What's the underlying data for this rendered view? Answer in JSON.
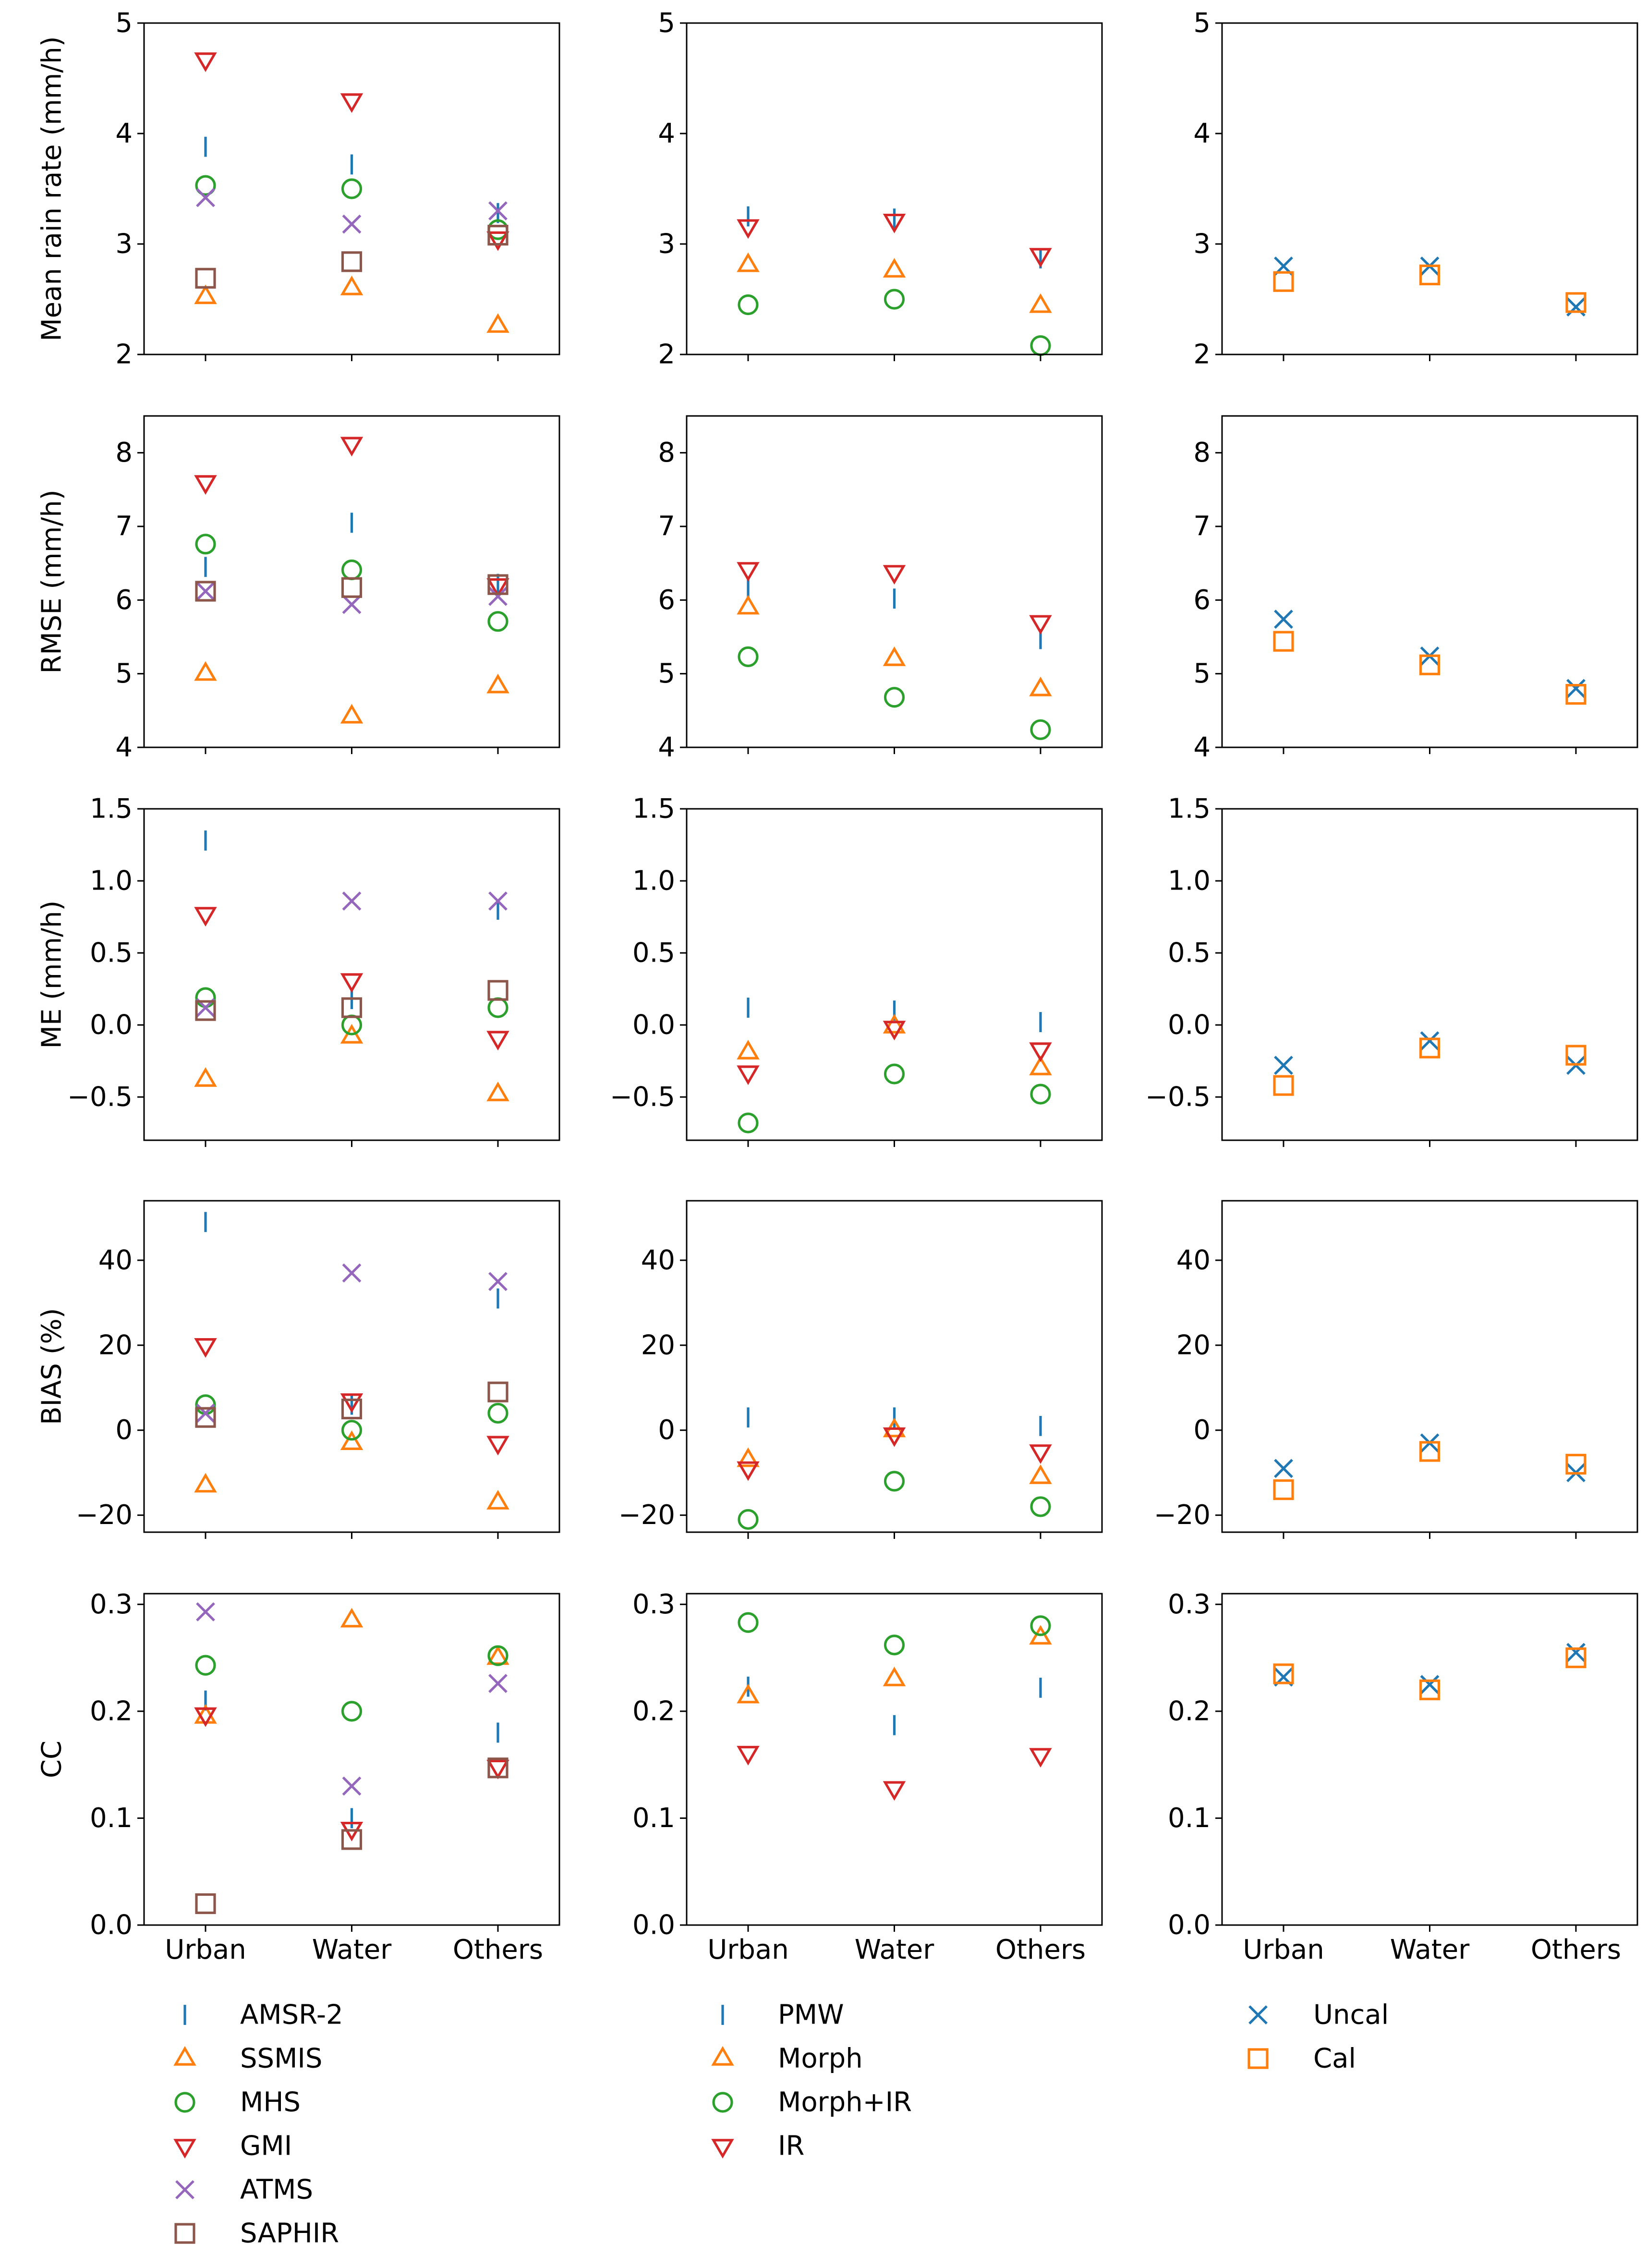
{
  "chart_data": [
    {
      "id": "p00",
      "type": "scatter",
      "ylabel": "Mean rain rate (mm/h)",
      "ylim": [
        2,
        5
      ],
      "yticks": [
        2,
        3,
        4,
        5
      ],
      "ytick_labels": [
        "2",
        "3",
        "4",
        "5"
      ],
      "categories": [
        "Urban",
        "Water",
        "Others"
      ],
      "series": [
        {
          "name": "AMSR-2",
          "values": [
            3.88,
            3.72,
            3.28
          ]
        },
        {
          "name": "SSMIS",
          "values": [
            2.52,
            2.6,
            2.26
          ]
        },
        {
          "name": "MHS",
          "values": [
            3.53,
            3.5,
            3.13
          ]
        },
        {
          "name": "GMI",
          "values": [
            4.67,
            4.3,
            3.05
          ]
        },
        {
          "name": "ATMS",
          "values": [
            3.42,
            3.18,
            3.3
          ]
        },
        {
          "name": "SAPHIR",
          "values": [
            2.69,
            2.84,
            3.08
          ]
        }
      ]
    },
    {
      "id": "p01",
      "type": "scatter",
      "ylabel": "",
      "ylim": [
        2,
        5
      ],
      "yticks": [
        2,
        3,
        4,
        5
      ],
      "ytick_labels": [
        "2",
        "3",
        "4",
        "5"
      ],
      "categories": [
        "Urban",
        "Water",
        "Others"
      ],
      "series": [
        {
          "name": "PMW",
          "values": [
            3.25,
            3.23,
            2.87
          ]
        },
        {
          "name": "Morph",
          "values": [
            2.81,
            2.76,
            2.44
          ]
        },
        {
          "name": "Morph+IR",
          "values": [
            2.45,
            2.5,
            2.08
          ]
        },
        {
          "name": "IR",
          "values": [
            3.16,
            3.21,
            2.9
          ]
        }
      ]
    },
    {
      "id": "p02",
      "type": "scatter",
      "ylabel": "",
      "ylim": [
        2,
        5
      ],
      "yticks": [
        2,
        3,
        4,
        5
      ],
      "ytick_labels": [
        "2",
        "3",
        "4",
        "5"
      ],
      "categories": [
        "Urban",
        "Water",
        "Others"
      ],
      "series": [
        {
          "name": "Uncal",
          "values": [
            2.8,
            2.8,
            2.43
          ]
        },
        {
          "name": "Cal",
          "values": [
            2.66,
            2.72,
            2.47
          ]
        }
      ]
    },
    {
      "id": "p10",
      "type": "scatter",
      "ylabel": "RMSE (mm/h)",
      "ylim": [
        4,
        8.5
      ],
      "yticks": [
        4,
        5,
        6,
        7,
        8
      ],
      "ytick_labels": [
        "4",
        "5",
        "6",
        "7",
        "8"
      ],
      "categories": [
        "Urban",
        "Water",
        "Others"
      ],
      "series": [
        {
          "name": "AMSR-2",
          "values": [
            6.45,
            7.05,
            6.22
          ]
        },
        {
          "name": "SSMIS",
          "values": [
            5.0,
            4.42,
            4.83
          ]
        },
        {
          "name": "MHS",
          "values": [
            6.76,
            6.41,
            5.71
          ]
        },
        {
          "name": "GMI",
          "values": [
            7.6,
            8.12,
            6.2
          ]
        },
        {
          "name": "ATMS",
          "values": [
            6.12,
            5.94,
            6.05
          ]
        },
        {
          "name": "SAPHIR",
          "values": [
            6.12,
            6.17,
            6.21
          ]
        }
      ]
    },
    {
      "id": "p11",
      "type": "scatter",
      "ylabel": "",
      "ylim": [
        4,
        8.5
      ],
      "yticks": [
        4,
        5,
        6,
        7,
        8
      ],
      "ytick_labels": [
        "4",
        "5",
        "6",
        "7",
        "8"
      ],
      "categories": [
        "Urban",
        "Water",
        "Others"
      ],
      "series": [
        {
          "name": "PMW",
          "values": [
            6.15,
            6.02,
            5.47
          ]
        },
        {
          "name": "Morph",
          "values": [
            5.9,
            5.2,
            4.79
          ]
        },
        {
          "name": "Morph+IR",
          "values": [
            5.23,
            4.68,
            4.24
          ]
        },
        {
          "name": "IR",
          "values": [
            6.42,
            6.38,
            5.7
          ]
        }
      ]
    },
    {
      "id": "p12",
      "type": "scatter",
      "ylabel": "",
      "ylim": [
        4,
        8.5
      ],
      "yticks": [
        4,
        5,
        6,
        7,
        8
      ],
      "ytick_labels": [
        "4",
        "5",
        "6",
        "7",
        "8"
      ],
      "categories": [
        "Urban",
        "Water",
        "Others"
      ],
      "series": [
        {
          "name": "Uncal",
          "values": [
            5.74,
            5.24,
            4.8
          ]
        },
        {
          "name": "Cal",
          "values": [
            5.44,
            5.12,
            4.72
          ]
        }
      ]
    },
    {
      "id": "p20",
      "type": "scatter",
      "ylabel": "ME (mm/h)",
      "ylim": [
        -0.8,
        1.5
      ],
      "yticks": [
        -0.5,
        0.0,
        0.5,
        1.0,
        1.5
      ],
      "ytick_labels": [
        "−0.5",
        "0.0",
        "0.5",
        "1.0",
        "1.5"
      ],
      "categories": [
        "Urban",
        "Water",
        "Others"
      ],
      "series": [
        {
          "name": "AMSR-2",
          "values": [
            1.28,
            0.18,
            0.8
          ]
        },
        {
          "name": "SSMIS",
          "values": [
            -0.38,
            -0.08,
            -0.48
          ]
        },
        {
          "name": "MHS",
          "values": [
            0.19,
            0.0,
            0.12
          ]
        },
        {
          "name": "GMI",
          "values": [
            0.77,
            0.31,
            -0.09
          ]
        },
        {
          "name": "ATMS",
          "values": [
            0.12,
            0.86,
            0.86
          ]
        },
        {
          "name": "SAPHIR",
          "values": [
            0.1,
            0.12,
            0.24
          ]
        }
      ]
    },
    {
      "id": "p21",
      "type": "scatter",
      "ylabel": "",
      "ylim": [
        -0.8,
        1.5
      ],
      "yticks": [
        -0.5,
        0.0,
        0.5,
        1.0,
        1.5
      ],
      "ytick_labels": [
        "−0.5",
        "0.0",
        "0.5",
        "1.0",
        "1.5"
      ],
      "categories": [
        "Urban",
        "Water",
        "Others"
      ],
      "series": [
        {
          "name": "PMW",
          "values": [
            0.12,
            0.1,
            0.02
          ]
        },
        {
          "name": "Morph",
          "values": [
            -0.19,
            -0.01,
            -0.3
          ]
        },
        {
          "name": "Morph+IR",
          "values": [
            -0.68,
            -0.34,
            -0.48
          ]
        },
        {
          "name": "IR",
          "values": [
            -0.33,
            -0.02,
            -0.17
          ]
        }
      ]
    },
    {
      "id": "p22",
      "type": "scatter",
      "ylabel": "",
      "ylim": [
        -0.8,
        1.5
      ],
      "yticks": [
        -0.5,
        0.0,
        0.5,
        1.0,
        1.5
      ],
      "ytick_labels": [
        "−0.5",
        "0.0",
        "0.5",
        "1.0",
        "1.5"
      ],
      "categories": [
        "Urban",
        "Water",
        "Others"
      ],
      "series": [
        {
          "name": "Uncal",
          "values": [
            -0.28,
            -0.11,
            -0.28
          ]
        },
        {
          "name": "Cal",
          "values": [
            -0.42,
            -0.16,
            -0.21
          ]
        }
      ]
    },
    {
      "id": "p30",
      "type": "scatter",
      "ylabel": "BIAS (%)",
      "ylim": [
        -24,
        54
      ],
      "yticks": [
        -20,
        0,
        20,
        40
      ],
      "ytick_labels": [
        "−20",
        "0",
        "20",
        "40"
      ],
      "categories": [
        "Urban",
        "Water",
        "Others"
      ],
      "series": [
        {
          "name": "AMSR-2",
          "values": [
            49,
            6,
            31
          ]
        },
        {
          "name": "SSMIS",
          "values": [
            -13,
            -3,
            -17
          ]
        },
        {
          "name": "MHS",
          "values": [
            6,
            0,
            4
          ]
        },
        {
          "name": "GMI",
          "values": [
            20,
            7,
            -3
          ]
        },
        {
          "name": "ATMS",
          "values": [
            4,
            37,
            35
          ]
        },
        {
          "name": "SAPHIR",
          "values": [
            3,
            5,
            9
          ]
        }
      ]
    },
    {
      "id": "p31",
      "type": "scatter",
      "ylabel": "",
      "ylim": [
        -24,
        54
      ],
      "yticks": [
        -20,
        0,
        20,
        40
      ],
      "ytick_labels": [
        "−20",
        "0",
        "20",
        "40"
      ],
      "categories": [
        "Urban",
        "Water",
        "Others"
      ],
      "series": [
        {
          "name": "PMW",
          "values": [
            3,
            3,
            1
          ]
        },
        {
          "name": "Morph",
          "values": [
            -7,
            0,
            -11
          ]
        },
        {
          "name": "Morph+IR",
          "values": [
            -21,
            -12,
            -18
          ]
        },
        {
          "name": "IR",
          "values": [
            -9,
            -1,
            -5
          ]
        }
      ]
    },
    {
      "id": "p32",
      "type": "scatter",
      "ylabel": "",
      "ylim": [
        -24,
        54
      ],
      "yticks": [
        -20,
        0,
        20,
        40
      ],
      "ytick_labels": [
        "−20",
        "0",
        "20",
        "40"
      ],
      "categories": [
        "Urban",
        "Water",
        "Others"
      ],
      "series": [
        {
          "name": "Uncal",
          "values": [
            -9,
            -3,
            -10
          ]
        },
        {
          "name": "Cal",
          "values": [
            -14,
            -5,
            -8
          ]
        }
      ]
    },
    {
      "id": "p40",
      "type": "scatter",
      "ylabel": "CC",
      "ylim": [
        0,
        0.31
      ],
      "yticks": [
        0.0,
        0.1,
        0.2,
        0.3
      ],
      "ytick_labels": [
        "0.0",
        "0.1",
        "0.2",
        "0.3"
      ],
      "categories": [
        "Urban",
        "Water",
        "Others"
      ],
      "series": [
        {
          "name": "AMSR-2",
          "values": [
            0.21,
            0.1,
            0.18
          ]
        },
        {
          "name": "SSMIS",
          "values": [
            0.195,
            0.285,
            0.25
          ]
        },
        {
          "name": "MHS",
          "values": [
            0.243,
            0.2,
            0.252
          ]
        },
        {
          "name": "GMI",
          "values": [
            0.197,
            0.09,
            0.148
          ]
        },
        {
          "name": "ATMS",
          "values": [
            0.293,
            0.13,
            0.226
          ]
        },
        {
          "name": "SAPHIR",
          "values": [
            0.02,
            0.08,
            0.147
          ]
        }
      ]
    },
    {
      "id": "p41",
      "type": "scatter",
      "ylabel": "",
      "ylim": [
        0,
        0.31
      ],
      "yticks": [
        0.0,
        0.1,
        0.2,
        0.3
      ],
      "ytick_labels": [
        "0.0",
        "0.1",
        "0.2",
        "0.3"
      ],
      "categories": [
        "Urban",
        "Water",
        "Others"
      ],
      "series": [
        {
          "name": "PMW",
          "values": [
            0.223,
            0.187,
            0.222
          ]
        },
        {
          "name": "Morph",
          "values": [
            0.214,
            0.23,
            0.269
          ]
        },
        {
          "name": "Morph+IR",
          "values": [
            0.283,
            0.262,
            0.28
          ]
        },
        {
          "name": "IR",
          "values": [
            0.161,
            0.128,
            0.159
          ]
        }
      ]
    },
    {
      "id": "p42",
      "type": "scatter",
      "ylabel": "",
      "ylim": [
        0,
        0.31
      ],
      "yticks": [
        0.0,
        0.1,
        0.2,
        0.3
      ],
      "ytick_labels": [
        "0.0",
        "0.1",
        "0.2",
        "0.3"
      ],
      "categories": [
        "Urban",
        "Water",
        "Others"
      ],
      "series": [
        {
          "name": "Uncal",
          "values": [
            0.232,
            0.225,
            0.255
          ]
        },
        {
          "name": "Cal",
          "values": [
            0.235,
            0.22,
            0.25
          ]
        }
      ]
    }
  ],
  "legends": [
    {
      "entries": [
        {
          "name": "AMSR-2",
          "marker": "vline",
          "color": "#1f77b4"
        },
        {
          "name": "SSMIS",
          "marker": "triangle-up",
          "color": "#ff7f0e"
        },
        {
          "name": "MHS",
          "marker": "circle",
          "color": "#2ca02c"
        },
        {
          "name": "GMI",
          "marker": "triangle-down",
          "color": "#d62728"
        },
        {
          "name": "ATMS",
          "marker": "x",
          "color": "#9467bd"
        },
        {
          "name": "SAPHIR",
          "marker": "square",
          "color": "#8c564b"
        }
      ]
    },
    {
      "entries": [
        {
          "name": "PMW",
          "marker": "vline",
          "color": "#1f77b4"
        },
        {
          "name": "Morph",
          "marker": "triangle-up",
          "color": "#ff7f0e"
        },
        {
          "name": "Morph+IR",
          "marker": "circle",
          "color": "#2ca02c"
        },
        {
          "name": "IR",
          "marker": "triangle-down",
          "color": "#d62728"
        }
      ]
    },
    {
      "entries": [
        {
          "name": "Uncal",
          "marker": "x",
          "color": "#1f77b4"
        },
        {
          "name": "Cal",
          "marker": "square",
          "color": "#ff7f0e"
        }
      ]
    }
  ]
}
